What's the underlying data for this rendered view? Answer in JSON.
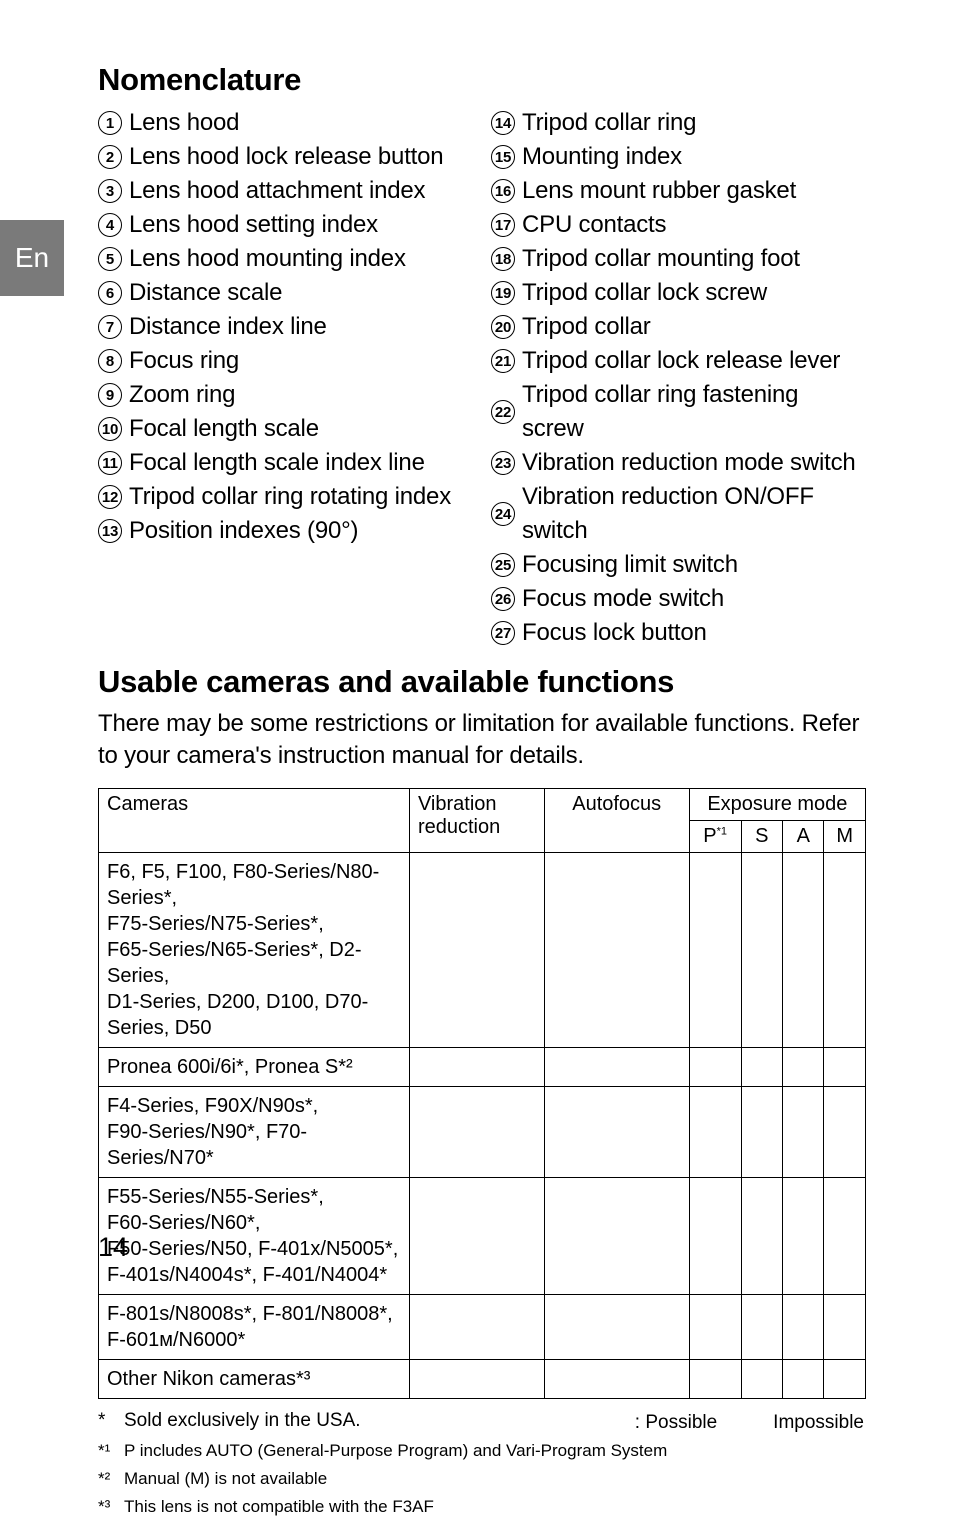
{
  "lang_tab": "En",
  "page_number": "14",
  "nomenclature": {
    "heading": "Nomenclature",
    "left": [
      "Lens hood",
      "Lens hood lock release button",
      "Lens hood attachment index",
      "Lens hood setting index",
      "Lens hood mounting index",
      "Distance scale",
      "Distance index line",
      "Focus ring",
      "Zoom ring",
      "Focal length scale",
      "Focal length scale index line",
      "Tripod collar ring rotating index",
      "Position indexes (90°)"
    ],
    "right": [
      "Tripod collar ring",
      "Mounting index",
      "Lens mount rubber gasket",
      "CPU contacts",
      "Tripod collar mounting foot",
      "Tripod collar lock screw",
      "Tripod collar",
      "Tripod collar lock release lever",
      "Tripod collar ring fastening screw",
      "Vibration reduction mode switch",
      "Vibration reduction ON/OFF switch",
      "Focusing limit switch",
      "Focus mode switch",
      "Focus lock button"
    ]
  },
  "usable": {
    "heading": "Usable cameras and available functions",
    "intro": "There may be some restrictions or limitation for available functions. Refer to your camera's instruction manual for details.",
    "columns": {
      "cameras": "Cameras",
      "vr": "Vibration reduction",
      "af": "Autofocus",
      "exposure": "Exposure mode",
      "p": "P",
      "p_sup": "*1",
      "s": "S",
      "a": "A",
      "m": "M"
    },
    "rows": [
      "F6, F5, F100, F80-Series/N80-Series*,\nF75-Series/N75-Series*,\nF65-Series/N65-Series*, D2-Series,\nD1-Series, D200, D100, D70-Series, D50",
      "Pronea 600i/6i*, Pronea S*²",
      "F4-Series, F90X/N90s*,\nF90-Series/N90*, F70-Series/N70*",
      "F55-Series/N55-Series*,\nF60-Series/N60*,\nF50-Series/N50, F-401x/N5005*,\nF-401s/N4004s*, F-401/N4004*",
      "F-801s/N8008s*, F-801/N8008*,\nF-601ᴍ/N6000*",
      "Other Nikon cameras*³"
    ]
  },
  "legend": {
    "possible": ": Possible",
    "impossible": "Impossible"
  },
  "footnotes": {
    "main": {
      "star": "*",
      "text": "Sold exclusively in the USA."
    },
    "n1": {
      "star": "*¹",
      "text": "P includes AUTO (General-Purpose Program) and Vari-Program System"
    },
    "n2": {
      "star": "*²",
      "text": "Manual (M) is not available"
    },
    "n3": {
      "star": "*³",
      "text": "This lens is not compatible with the F3AF"
    }
  }
}
